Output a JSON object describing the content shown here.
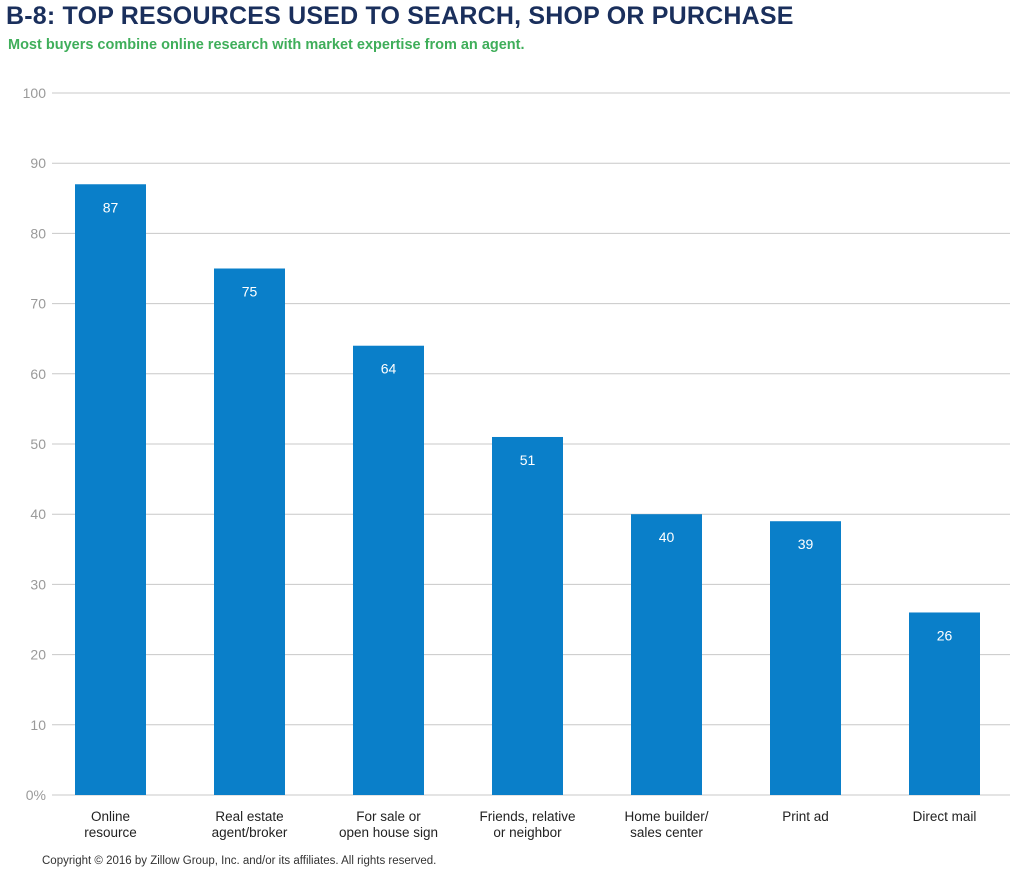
{
  "header": {
    "title": "B-8: TOP RESOURCES USED TO SEARCH, SHOP OR PURCHASE",
    "subtitle": "Most buyers combine online research with market expertise from an agent."
  },
  "footer": {
    "copyright": "Copyright © 2016 by Zillow Group, Inc. and/or its affiliates. All rights reserved."
  },
  "colors": {
    "bar": "#0a7fc9",
    "title": "#1a2f5c",
    "subtitle": "#3fae5a",
    "grid": "#c8c8c8",
    "tick": "#9a9a9a"
  },
  "chart_data": {
    "type": "bar",
    "categories": [
      [
        "Online",
        "resource"
      ],
      [
        "Real estate",
        "agent/broker"
      ],
      [
        "For sale or",
        "open house sign"
      ],
      [
        "Friends, relative",
        "or neighbor"
      ],
      [
        "Home builder/",
        "sales center"
      ],
      [
        "Print ad"
      ],
      [
        "Direct mail"
      ]
    ],
    "values": [
      87,
      75,
      64,
      51,
      40,
      39,
      26
    ],
    "data_labels": [
      "87",
      "75",
      "64",
      "51",
      "40",
      "39",
      "26"
    ],
    "ylim": [
      0,
      100
    ],
    "yticks": [
      0,
      10,
      20,
      30,
      40,
      50,
      60,
      70,
      80,
      90,
      100
    ],
    "ytick_labels": [
      "0%",
      "10",
      "20",
      "30",
      "40",
      "50",
      "60",
      "70",
      "80",
      "90",
      "100"
    ],
    "grid": true,
    "legend": "none"
  }
}
